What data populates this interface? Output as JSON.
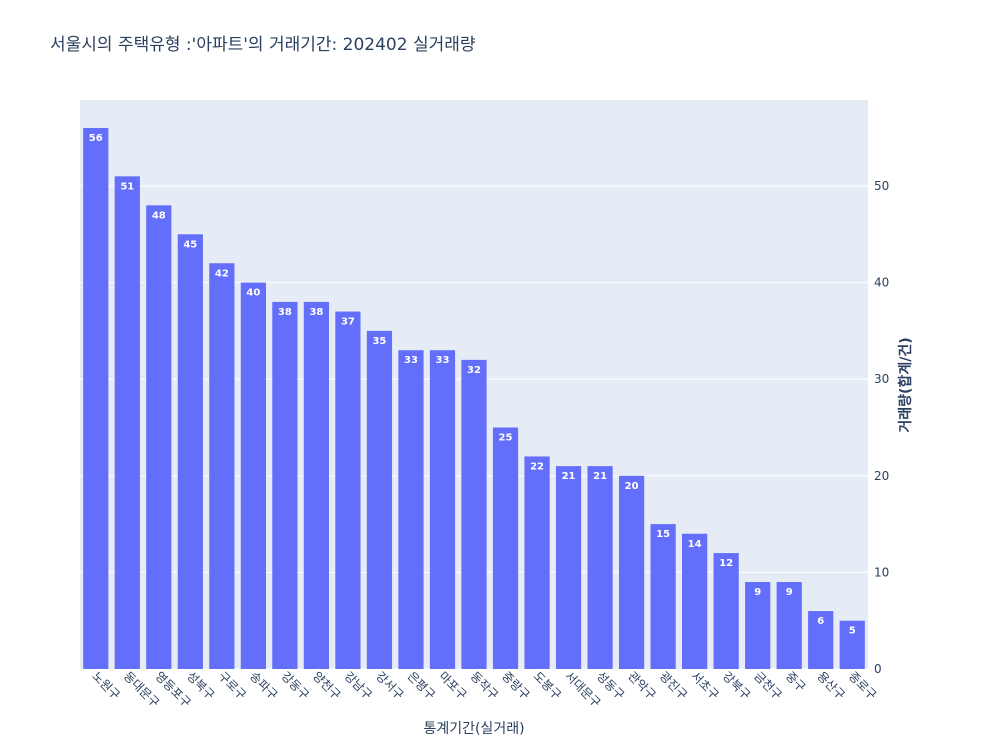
{
  "chart_data": {
    "type": "bar",
    "title": "서울시의 주택유형 :'아파트'의 거래기간: 202402 실거래량",
    "x_label": "통계기간(실거래)",
    "y_label": "거래량(합계/건)",
    "categories": [
      "노원구",
      "동대문구",
      "영등포구",
      "성북구",
      "구로구",
      "송파구",
      "강동구",
      "양천구",
      "강남구",
      "강서구",
      "은평구",
      "마포구",
      "동작구",
      "중랑구",
      "도봉구",
      "서대문구",
      "성동구",
      "관악구",
      "광진구",
      "서초구",
      "강북구",
      "금천구",
      "중구",
      "용산구",
      "종로구"
    ],
    "values": [
      56,
      51,
      48,
      45,
      42,
      40,
      38,
      38,
      37,
      35,
      33,
      33,
      32,
      25,
      22,
      21,
      21,
      20,
      15,
      14,
      12,
      9,
      9,
      6,
      5
    ],
    "color": "#636efa",
    "ylim": [
      0,
      58.9
    ],
    "yticks": [
      0,
      10,
      20,
      30,
      40,
      50
    ],
    "y_axis_side": "right",
    "grid": true
  }
}
